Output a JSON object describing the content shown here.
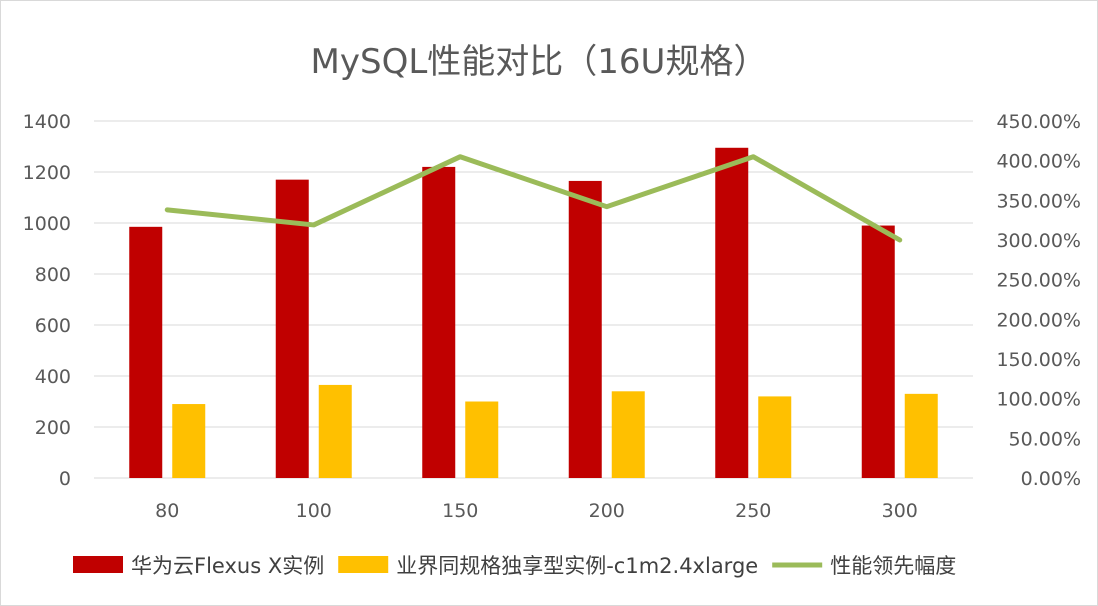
{
  "chart_data": {
    "type": "bar",
    "title": "MySQL性能对比（16U规格）",
    "categories": [
      "80",
      "100",
      "150",
      "200",
      "250",
      "300"
    ],
    "series": [
      {
        "name": "华为云Flexus X实例",
        "kind": "bar",
        "axis": "left",
        "color": "#c00000",
        "values": [
          985,
          1170,
          1220,
          1165,
          1295,
          990
        ]
      },
      {
        "name": "业界同规格独享型实例-c1m2.4xlarge",
        "kind": "bar",
        "axis": "left",
        "color": "#ffc000",
        "values": [
          290,
          365,
          300,
          340,
          320,
          330
        ]
      },
      {
        "name": "性能领先幅度",
        "kind": "line",
        "axis": "right",
        "color": "#9bbb59",
        "values": [
          3.38,
          3.19,
          4.05,
          3.42,
          4.05,
          3.0
        ]
      }
    ],
    "y_left": {
      "min": 0,
      "max": 1400,
      "ticks": [
        "0",
        "200",
        "400",
        "600",
        "800",
        "1000",
        "1200",
        "1400"
      ]
    },
    "y_right": {
      "min": 0,
      "max": 4.5,
      "ticks": [
        "0.00%",
        "50.00%",
        "100.00%",
        "150.00%",
        "200.00%",
        "250.00%",
        "300.00%",
        "350.00%",
        "400.00%",
        "450.00%"
      ]
    },
    "grid": true,
    "legend_position": "bottom"
  }
}
